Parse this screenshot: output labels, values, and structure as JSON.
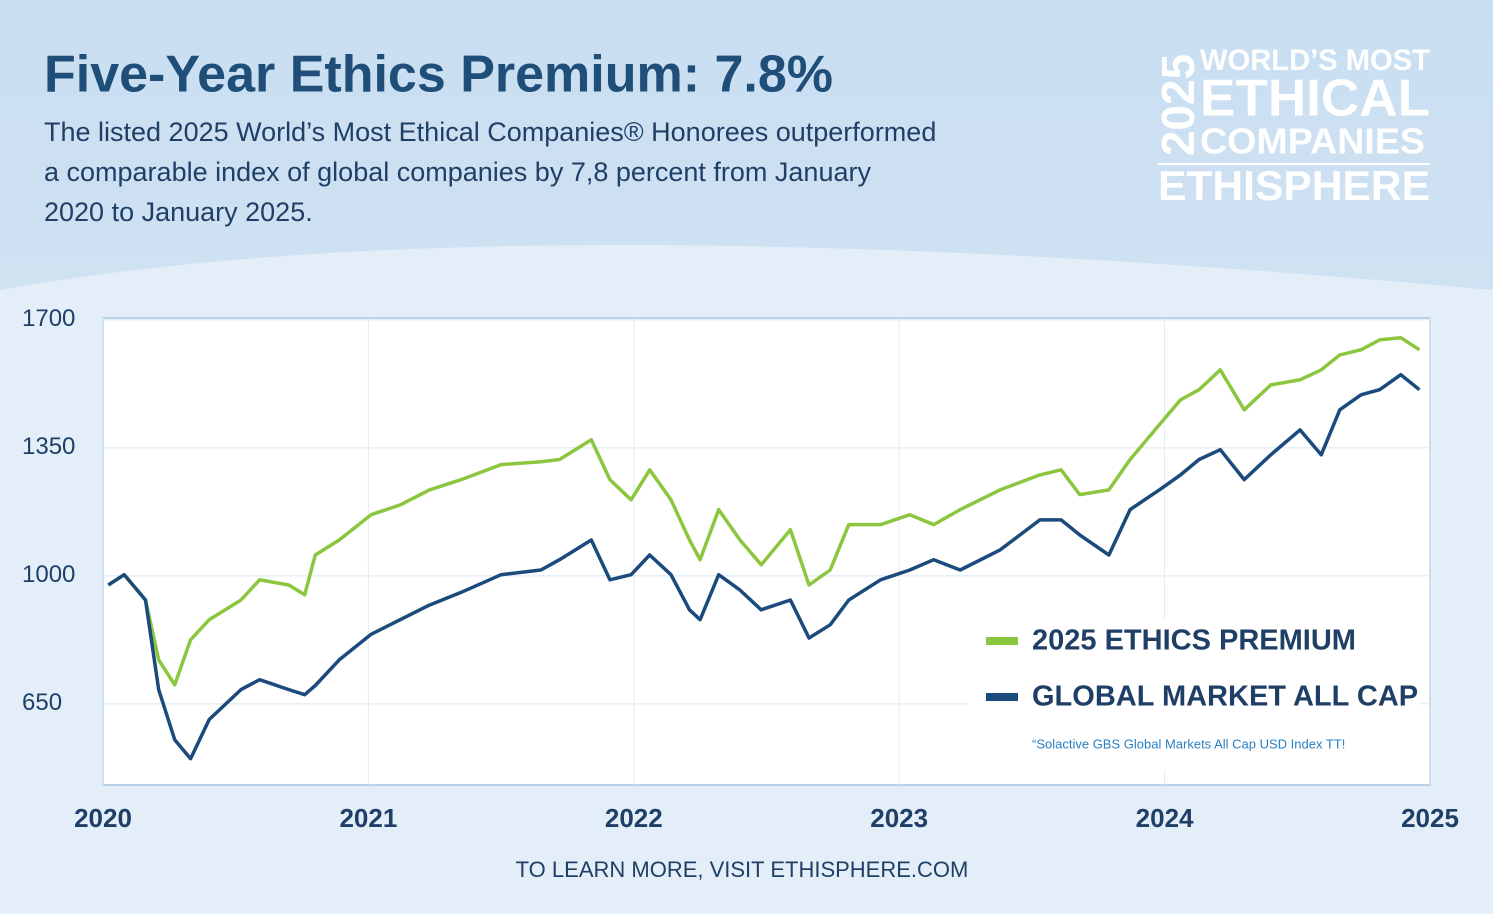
{
  "chart_data": {
    "type": "line",
    "title": "Five-Year Ethics Premium: 7.8%",
    "subtitle": [
      "The listed 2025 World’s Most Ethical Companies® Honorees outperformed",
      "a comparable index of global companies by 7,8 percent from January",
      "2020 to January 2025."
    ],
    "logo": {
      "year": "2025",
      "lines": [
        "WORLD’S MOST",
        "ETHICAL",
        "COMPANIES",
        "ETHISPHERE"
      ]
    },
    "x": [
      2020.02,
      2020.08,
      2020.16,
      2020.21,
      2020.27,
      2020.33,
      2020.4,
      2020.52,
      2020.59,
      2020.7,
      2020.76,
      2020.8,
      2020.89,
      2021.01,
      2021.12,
      2021.23,
      2021.35,
      2021.5,
      2021.65,
      2021.72,
      2021.84,
      2021.91,
      2021.99,
      2022.06,
      2022.14,
      2022.21,
      2022.25,
      2022.32,
      2022.4,
      2022.48,
      2022.59,
      2022.66,
      2022.74,
      2022.81,
      2022.93,
      2023.04,
      2023.13,
      2023.23,
      2023.38,
      2023.53,
      2023.61,
      2023.68,
      2023.79,
      2023.87,
      2023.98,
      2024.06,
      2024.13,
      2024.21,
      2024.3,
      2024.4,
      2024.51,
      2024.59,
      2024.66,
      2024.74,
      2024.81,
      2024.89,
      2024.96
    ],
    "series": [
      {
        "name": "2025 ETHICS PREMIUM",
        "color": "#8cc63f",
        "values": [
          975,
          1003,
          934,
          770,
          702,
          825,
          880,
          934,
          989,
          975,
          948,
          1057,
          1098,
          1167,
          1194,
          1235,
          1263,
          1304,
          1312,
          1318,
          1372,
          1263,
          1208,
          1290,
          1208,
          1098,
          1044,
          1181,
          1098,
          1030,
          1126,
          975,
          1016,
          1140,
          1140,
          1167,
          1140,
          1181,
          1235,
          1276,
          1290,
          1222,
          1235,
          1318,
          1413,
          1481,
          1509,
          1563,
          1454,
          1522,
          1536,
          1563,
          1604,
          1618,
          1645,
          1651,
          1618
        ]
      },
      {
        "name": "GLOBAL MARKET ALL CAP",
        "color": "#1b4a7c",
        "values": [
          975,
          1003,
          934,
          689,
          552,
          500,
          607,
          689,
          716,
          689,
          675,
          700,
          770,
          840,
          880,
          920,
          955,
          1003,
          1016,
          1044,
          1098,
          989,
          1003,
          1057,
          1003,
          907,
          880,
          1003,
          961,
          907,
          934,
          830,
          866,
          934,
          989,
          1016,
          1044,
          1016,
          1071,
          1153,
          1153,
          1112,
          1057,
          1181,
          1235,
          1276,
          1318,
          1345,
          1263,
          1331,
          1399,
          1331,
          1454,
          1495,
          1509,
          1550,
          1509
        ]
      }
    ],
    "xlim": [
      2020,
      2025
    ],
    "xticks": [
      2020,
      2021,
      2022,
      2023,
      2024,
      2025
    ],
    "ylim": [
      428,
      1705
    ],
    "yticks": [
      650,
      1000,
      1350,
      1700
    ],
    "grid": true,
    "legend": "lower right",
    "footnote": "“Solactive GBS Global Markets All Cap USD Index TT!",
    "footer": "TO LEARN MORE, VISIT ETHISPHERE.COM"
  }
}
